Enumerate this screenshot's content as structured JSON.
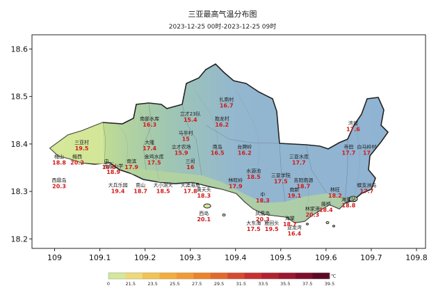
{
  "map": {
    "title": "三亚最高气温分布图",
    "subtitle": "2023-12-25 00时-2023-12-25 09时",
    "x_ticks": [
      "109",
      "109.1",
      "109.2",
      "109.3",
      "109.4",
      "109.5",
      "109.6",
      "109.7",
      "109.8"
    ],
    "y_ticks": [
      "18.6",
      "18.5",
      "18.4",
      "18.3",
      "18.2"
    ],
    "x_range": [
      108.95,
      109.82
    ],
    "y_range": [
      18.18,
      18.63
    ],
    "stations": [
      {
        "name": "梅山",
        "value": "18.8",
        "lon": 109.01,
        "lat": 18.37
      },
      {
        "name": "三亚村",
        "value": "19.5",
        "lon": 109.06,
        "lat": 18.4
      },
      {
        "name": "梅西",
        "value": "20.2",
        "lon": 109.05,
        "lat": 18.37
      },
      {
        "name": "西鼎岛",
        "value": "20.3",
        "lon": 109.01,
        "lat": 18.32
      },
      {
        "name": "中...",
        "value": "18.8",
        "lon": 109.12,
        "lat": 18.36
      },
      {
        "name": "水库小学",
        "value": "18.9",
        "lon": 109.13,
        "lat": 18.35
      },
      {
        "name": "南滨",
        "value": "17.9",
        "lon": 109.17,
        "lat": 18.36
      },
      {
        "name": "金鸡水库",
        "value": "17.5",
        "lon": 109.22,
        "lat": 18.37
      },
      {
        "name": "大隆",
        "value": "17.4",
        "lon": 109.21,
        "lat": 18.4
      },
      {
        "name": "南部水库",
        "value": "16.3",
        "lon": 109.21,
        "lat": 18.45
      },
      {
        "name": "立才23队",
        "value": "15.4",
        "lon": 109.3,
        "lat": 18.46
      },
      {
        "name": "马亭村",
        "value": "15",
        "lon": 109.29,
        "lat": 18.42
      },
      {
        "name": "立才农场",
        "value": "15.9",
        "lon": 109.28,
        "lat": 18.39
      },
      {
        "name": "三司",
        "value": "16",
        "lon": 109.3,
        "lat": 18.36
      },
      {
        "name": "扎南村",
        "value": "16.7",
        "lon": 109.38,
        "lat": 18.49
      },
      {
        "name": "抱龙村",
        "value": "16.2",
        "lon": 109.37,
        "lat": 18.45
      },
      {
        "name": "南岛",
        "value": "16.5",
        "lon": 109.36,
        "lat": 18.39
      },
      {
        "name": "台牌岭",
        "value": "16.2",
        "lon": 109.42,
        "lat": 18.39
      },
      {
        "name": "大兵乐园",
        "value": "19.4",
        "lon": 109.14,
        "lat": 18.31
      },
      {
        "name": "南山",
        "value": "18.7",
        "lon": 109.19,
        "lat": 18.31
      },
      {
        "name": "大小洞天",
        "value": "18.5",
        "lon": 109.24,
        "lat": 18.31
      },
      {
        "name": "天涯海角",
        "value": "17.8",
        "lon": 109.3,
        "lat": 18.31
      },
      {
        "name": "黄天头",
        "value": "18.3",
        "lon": 109.33,
        "lat": 18.3
      },
      {
        "name": "林旺岭",
        "value": "17.9",
        "lon": 109.4,
        "lat": 18.32
      },
      {
        "name": "水源池",
        "value": "18.5",
        "lon": 109.44,
        "lat": 18.34
      },
      {
        "name": "西岛",
        "value": "20.1",
        "lon": 109.33,
        "lat": 18.25
      },
      {
        "name": "三亚学院",
        "value": "17.5",
        "lon": 109.5,
        "lat": 18.33
      },
      {
        "name": "三亚水库",
        "value": "17.7",
        "lon": 109.54,
        "lat": 18.37
      },
      {
        "name": "吉阳南源",
        "value": "18.7",
        "lon": 109.55,
        "lat": 18.32
      },
      {
        "name": "南新",
        "value": "19.1",
        "lon": 109.53,
        "lat": 18.3
      },
      {
        "name": "中",
        "value": "18.3",
        "lon": 109.46,
        "lat": 18.29
      },
      {
        "name": "凤凰岛",
        "value": "20.3",
        "lon": 109.46,
        "lat": 18.25
      },
      {
        "name": "鹿回头",
        "value": "19.5",
        "lon": 109.48,
        "lat": 18.23
      },
      {
        "name": "大东海",
        "value": "17.5",
        "lon": 109.44,
        "lat": 18.23
      },
      {
        "name": "亚龙湾",
        "value": "16.4",
        "lon": 109.53,
        "lat": 18.22
      },
      {
        "name": "海棠",
        "value": "18.7",
        "lon": 109.52,
        "lat": 18.24
      },
      {
        "name": "林家港",
        "value": "20.3",
        "lon": 109.57,
        "lat": 18.26
      },
      {
        "name": "林旺",
        "value": "18.2",
        "lon": 109.62,
        "lat": 18.3
      },
      {
        "name": "藤桥",
        "value": "18.4",
        "lon": 109.6,
        "lat": 18.27
      },
      {
        "name": "海棠站",
        "value": "18.8",
        "lon": 109.65,
        "lat": 18.28
      },
      {
        "name": "蜈支洲岛",
        "value": "17.7",
        "lon": 109.69,
        "lat": 18.31
      },
      {
        "name": "湾坡",
        "value": "17.6",
        "lon": 109.66,
        "lat": 18.44
      },
      {
        "name": "寺田",
        "value": "17.7",
        "lon": 109.65,
        "lat": 18.39
      },
      {
        "name": "白马岭村",
        "value": "17",
        "lon": 109.69,
        "lat": 18.39
      }
    ]
  },
  "legend": {
    "unit": "℃",
    "labels": [
      "0",
      "21.5",
      "23.5",
      "25.5",
      "27.5",
      "29.5",
      "31.5",
      "33.5",
      "35.5",
      "37.5",
      "39.5"
    ],
    "colors": [
      "#d3e89a",
      "#eed977",
      "#f2c350",
      "#f4ad39",
      "#f29a32",
      "#ec822a",
      "#e3692a",
      "#d64a2d",
      "#c63030",
      "#b2212f",
      "#9c1730",
      "#7d0e2d",
      "#5c0926"
    ]
  }
}
